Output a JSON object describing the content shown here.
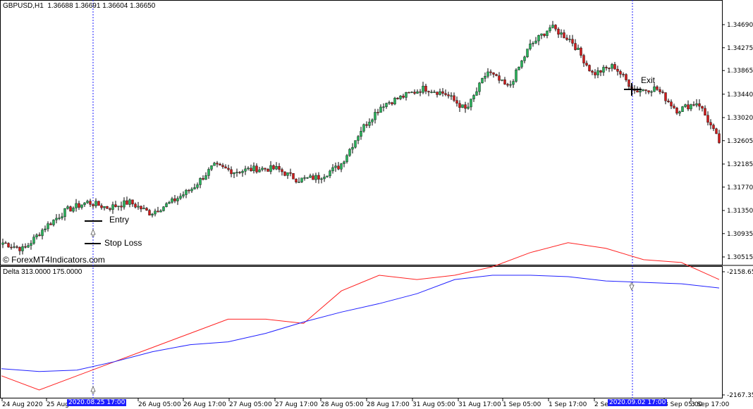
{
  "header": {
    "symbol": "GBPUSD,H1",
    "ohlc": "1.36688 1.36691 1.36604 1.36650"
  },
  "watermark_site": "© ForexMT4Indicators.com",
  "indicator": {
    "label": "Delta 313.0000 175.0000"
  },
  "price_ticks": [
    "1.34690",
    "1.34275",
    "1.33865",
    "1.33440",
    "1.33020",
    "1.32605",
    "1.32185",
    "1.31770",
    "1.31350",
    "1.30935",
    "1.30515"
  ],
  "indicator_ticks": [
    "-2158.65",
    "-2167.35"
  ],
  "x_labels": [
    "24 Aug 2020",
    "25 Aug",
    "26 Aug 05:00",
    "26 Aug 17:00",
    "27 Aug 05:00",
    "27 Aug 17:00",
    "28 Aug 05:00",
    "28 Aug 17:00",
    "31 Aug 05:00",
    "31 Aug 17:00",
    "1 Sep 05:00",
    "1 Sep 17:00",
    "2 Se",
    "3 Sep 05:00",
    "3 Sep 17:00"
  ],
  "highlight_labels": [
    "2020.08.25 17:00",
    "2020.09.02 17:00"
  ],
  "annotations": {
    "entry": "Entry",
    "stop_loss": "Stop Loss",
    "exit": "Exit"
  },
  "colors": {
    "bull": "#27b35a",
    "bear": "#d11a1a",
    "fast_line": "#ff2020",
    "slow_line": "#2020ff",
    "vline": "#1c1cff"
  },
  "chart_data": {
    "type": "candlestick",
    "anchor_prices": [
      1.3077,
      1.3065,
      1.3105,
      1.3135,
      1.315,
      1.314,
      1.315,
      1.313,
      1.315,
      1.3175,
      1.3215,
      1.3205,
      1.321,
      1.321,
      1.319,
      1.3195,
      1.3215,
      1.328,
      1.3325,
      1.334,
      1.3355,
      1.3345,
      1.3315,
      1.3385,
      1.3355,
      1.343,
      1.3465,
      1.344,
      1.338,
      1.3395,
      1.335,
      1.3355,
      1.3315,
      1.333,
      1.3258
    ],
    "indicator": {
      "fast": [
        -2166.0,
        -2167.0,
        -2166.0,
        -2165.0,
        -2164.0,
        -2163.0,
        -2162.0,
        -2162.0,
        -2162.3,
        -2160.0,
        -2158.9,
        -2159.2,
        -2158.9,
        -2158.3,
        -2157.3,
        -2156.6,
        -2157.0,
        -2157.8,
        -2158.0,
        -2159.2
      ],
      "slow": [
        -2165.5,
        -2165.7,
        -2165.6,
        -2165.0,
        -2164.3,
        -2163.8,
        -2163.6,
        -2163.0,
        -2162.2,
        -2161.5,
        -2160.9,
        -2160.2,
        -2159.2,
        -2158.9,
        -2158.9,
        -2159.0,
        -2159.3,
        -2159.4,
        -2159.5,
        -2159.8
      ]
    }
  }
}
